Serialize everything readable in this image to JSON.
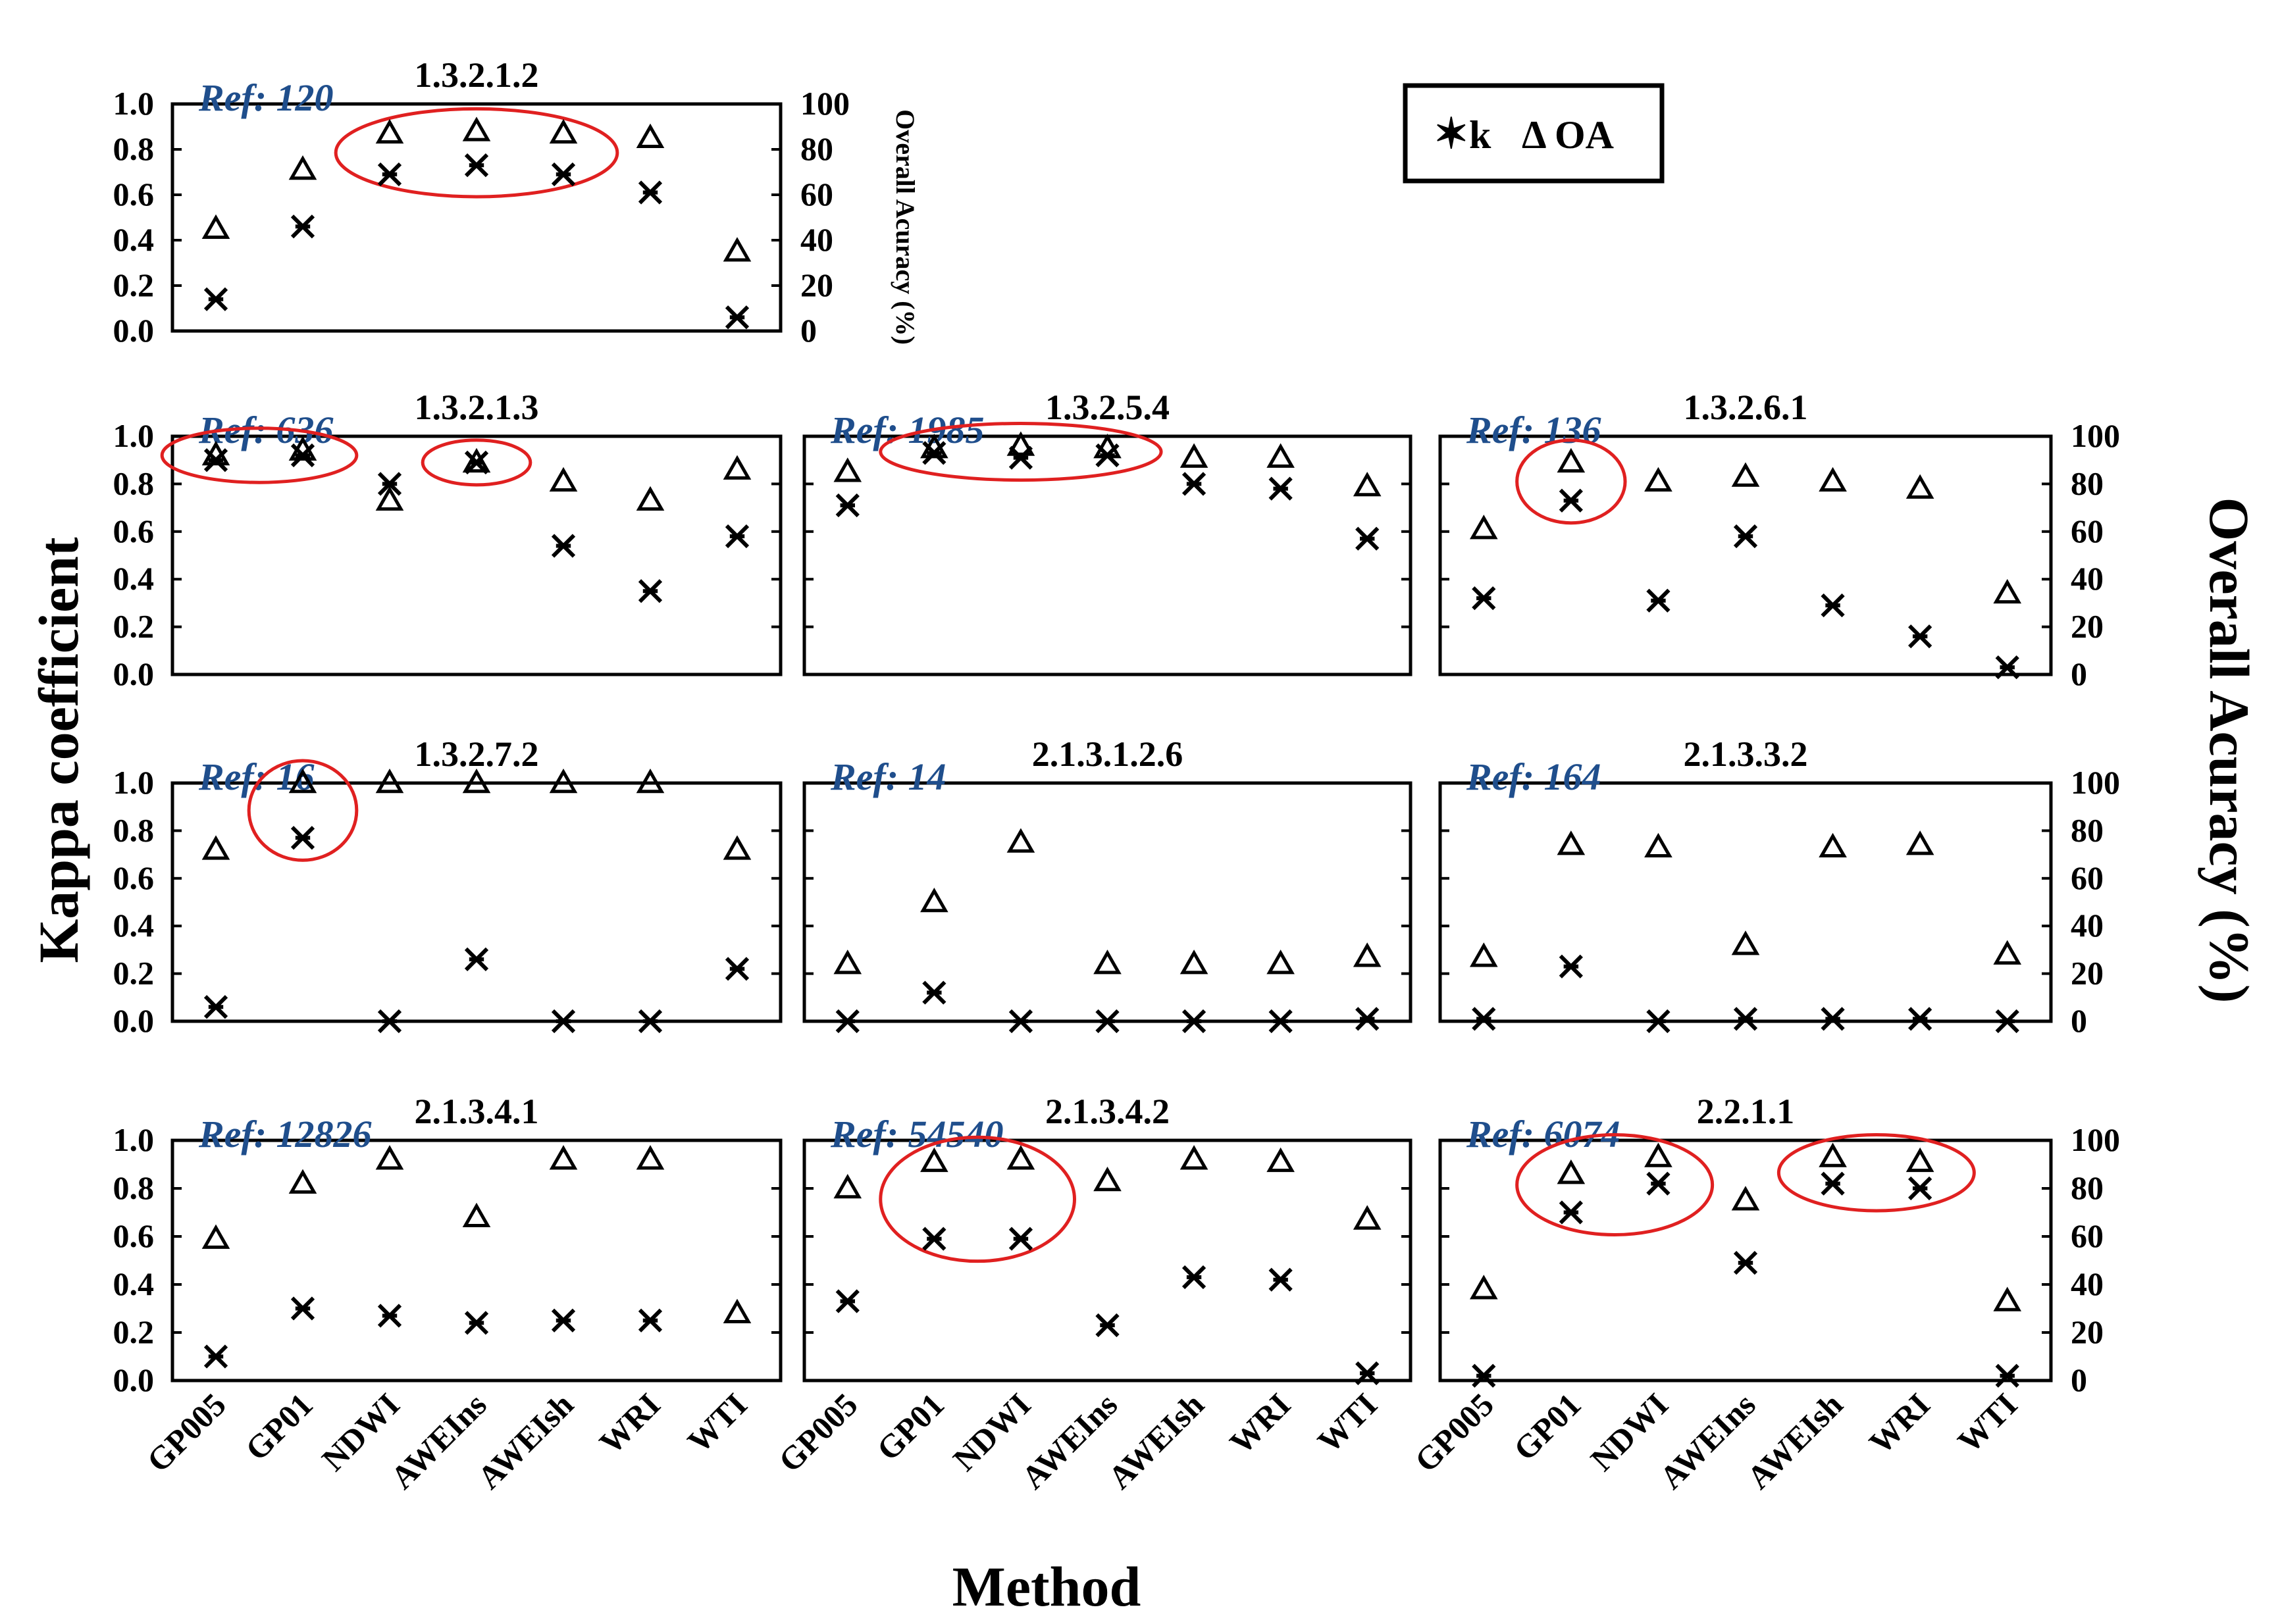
{
  "figure": {
    "ylabel_left": "Kappa coefficient",
    "ylabel_right": "Overall Acuracy (%)",
    "xlabel": "Method",
    "small_right_label": "Overall Acuracy (%)",
    "legend": [
      {
        "symbol": "✶",
        "label": "k"
      },
      {
        "symbol": "Δ",
        "label": "OA"
      }
    ],
    "colors": {
      "axis": "#000000",
      "ref": "#1f4e8c",
      "highlight": "#e02020",
      "marker": "#000000"
    }
  },
  "chart_data": [
    {
      "type": "scatter",
      "title": "1.3.2.1.2",
      "ref": "Ref: 120",
      "categories": [
        "GP005",
        "GP01",
        "NDWI",
        "AWEIns",
        "AWEIsh",
        "WRI",
        "WTI"
      ],
      "kappa": [
        0.14,
        0.46,
        0.69,
        0.73,
        0.69,
        0.61,
        0.06
      ],
      "oa": [
        45,
        71,
        87,
        88,
        87,
        85,
        35
      ],
      "ylim": [
        0,
        1
      ],
      "ylim_oa": [
        0,
        100
      ],
      "yticks_left": [
        "0.0",
        "0.2",
        "0.4",
        "0.6",
        "0.8",
        "1.0"
      ],
      "yticks_right": [
        "0",
        "20",
        "40",
        "60",
        "80",
        "100"
      ],
      "highlights": [
        [
          2,
          4
        ]
      ]
    },
    {
      "type": "scatter",
      "title": "1.3.2.1.3",
      "ref": "Ref: 636",
      "categories": [
        "GP005",
        "GP01",
        "NDWI",
        "AWEIns",
        "AWEIsh",
        "WRI",
        "WTI"
      ],
      "kappa": [
        0.9,
        0.92,
        0.8,
        0.89,
        0.54,
        0.35,
        0.58
      ],
      "oa": [
        92,
        94,
        73,
        89,
        81,
        73,
        86
      ],
      "ylim": [
        0,
        1
      ],
      "ylim_oa": [
        0,
        100
      ],
      "yticks_left": [
        "0.0",
        "0.2",
        "0.4",
        "0.6",
        "0.8",
        "1.0"
      ],
      "yticks_right": [],
      "highlights": [
        [
          0,
          1
        ],
        [
          3,
          3
        ]
      ]
    },
    {
      "type": "scatter",
      "title": "1.3.2.5.4",
      "ref": "Ref: 1985",
      "categories": [
        "GP005",
        "GP01",
        "NDWI",
        "AWEIns",
        "AWEIsh",
        "WRI",
        "WTI"
      ],
      "kappa": [
        0.71,
        0.93,
        0.91,
        0.92,
        0.8,
        0.78,
        0.57
      ],
      "oa": [
        85,
        95,
        96,
        95,
        91,
        91,
        79
      ],
      "ylim": [
        0,
        1
      ],
      "ylim_oa": [
        0,
        100
      ],
      "yticks_left": [],
      "yticks_right": [],
      "highlights": [
        [
          1,
          3
        ]
      ]
    },
    {
      "type": "scatter",
      "title": "1.3.2.6.1",
      "ref": "Ref: 136",
      "categories": [
        "GP005",
        "GP01",
        "NDWI",
        "AWEIns",
        "AWEIsh",
        "WRI",
        "WTI"
      ],
      "kappa": [
        0.32,
        0.73,
        0.31,
        0.58,
        0.29,
        0.16,
        0.03
      ],
      "oa": [
        61,
        89,
        81,
        83,
        81,
        78,
        34
      ],
      "ylim": [
        0,
        1
      ],
      "ylim_oa": [
        0,
        100
      ],
      "yticks_left": [],
      "yticks_right": [
        "0",
        "20",
        "40",
        "60",
        "80",
        "100"
      ],
      "highlights": [
        [
          1,
          1
        ]
      ]
    },
    {
      "type": "scatter",
      "title": "1.3.2.7.2",
      "ref": "Ref: 16",
      "categories": [
        "GP005",
        "GP01",
        "NDWI",
        "AWEIns",
        "AWEIsh",
        "WRI",
        "WTI"
      ],
      "kappa": [
        0.06,
        0.77,
        0.0,
        0.26,
        0.0,
        0.0,
        0.22
      ],
      "oa": [
        72,
        100,
        100,
        100,
        100,
        100,
        72
      ],
      "ylim": [
        0,
        1
      ],
      "ylim_oa": [
        0,
        100
      ],
      "yticks_left": [
        "0.0",
        "0.2",
        "0.4",
        "0.6",
        "0.8",
        "1.0"
      ],
      "yticks_right": [],
      "highlights": [
        [
          1,
          1
        ]
      ]
    },
    {
      "type": "scatter",
      "title": "2.1.3.1.2.6",
      "ref": "Ref: 14",
      "categories": [
        "GP005",
        "GP01",
        "NDWI",
        "AWEIns",
        "AWEIsh",
        "WRI",
        "WTI"
      ],
      "kappa": [
        0.0,
        0.12,
        0.0,
        0.0,
        0.0,
        0.0,
        0.01
      ],
      "oa": [
        24,
        50,
        75,
        24,
        24,
        24,
        27
      ],
      "ylim": [
        0,
        1
      ],
      "ylim_oa": [
        0,
        100
      ],
      "yticks_left": [],
      "yticks_right": [],
      "highlights": []
    },
    {
      "type": "scatter",
      "title": "2.1.3.3.2",
      "ref": "Ref: 164",
      "categories": [
        "GP005",
        "GP01",
        "NDWI",
        "AWEIns",
        "AWEIsh",
        "WRI",
        "WTI"
      ],
      "kappa": [
        0.01,
        0.23,
        0.0,
        0.01,
        0.01,
        0.01,
        0.0
      ],
      "oa": [
        27,
        74,
        73,
        32,
        73,
        74,
        28
      ],
      "ylim": [
        0,
        1
      ],
      "ylim_oa": [
        0,
        100
      ],
      "yticks_left": [],
      "yticks_right": [
        "0",
        "20",
        "40",
        "60",
        "80",
        "100"
      ],
      "highlights": []
    },
    {
      "type": "scatter",
      "title": "2.1.3.4.1",
      "ref": "Ref: 12826",
      "categories": [
        "GP005",
        "GP01",
        "NDWI",
        "AWEIns",
        "AWEIsh",
        "WRI",
        "WTI"
      ],
      "kappa": [
        0.1,
        0.3,
        0.27,
        0.24,
        0.25,
        0.25,
        null
      ],
      "oa": [
        59,
        82,
        92,
        68,
        92,
        92,
        28
      ],
      "ylim": [
        0,
        1
      ],
      "ylim_oa": [
        0,
        100
      ],
      "yticks_left": [
        "0.0",
        "0.2",
        "0.4",
        "0.6",
        "0.8",
        "1.0"
      ],
      "yticks_right": [],
      "highlights": []
    },
    {
      "type": "scatter",
      "title": "2.1.3.4.2",
      "ref": "Ref: 54540",
      "categories": [
        "GP005",
        "GP01",
        "NDWI",
        "AWEIns",
        "AWEIsh",
        "WRI",
        "WTI"
      ],
      "kappa": [
        0.33,
        0.59,
        0.59,
        0.23,
        0.43,
        0.42,
        0.03
      ],
      "oa": [
        80,
        91,
        92,
        83,
        92,
        91,
        67
      ],
      "ylim": [
        0,
        1
      ],
      "ylim_oa": [
        0,
        100
      ],
      "yticks_left": [],
      "yticks_right": [],
      "highlights": [
        [
          1,
          2
        ]
      ]
    },
    {
      "type": "scatter",
      "title": "2.2.1.1",
      "ref": "Ref: 6074",
      "categories": [
        "GP005",
        "GP01",
        "NDWI",
        "AWEIns",
        "AWEIsh",
        "WRI",
        "WTI"
      ],
      "kappa": [
        0.02,
        0.7,
        0.82,
        0.49,
        0.82,
        0.8,
        0.02
      ],
      "oa": [
        38,
        86,
        93,
        75,
        93,
        91,
        33
      ],
      "ylim": [
        0,
        1
      ],
      "ylim_oa": [
        0,
        100
      ],
      "yticks_left": [],
      "yticks_right": [
        "0",
        "20",
        "40",
        "60",
        "80",
        "100"
      ],
      "highlights": [
        [
          1,
          2
        ],
        [
          4,
          5
        ]
      ]
    }
  ]
}
